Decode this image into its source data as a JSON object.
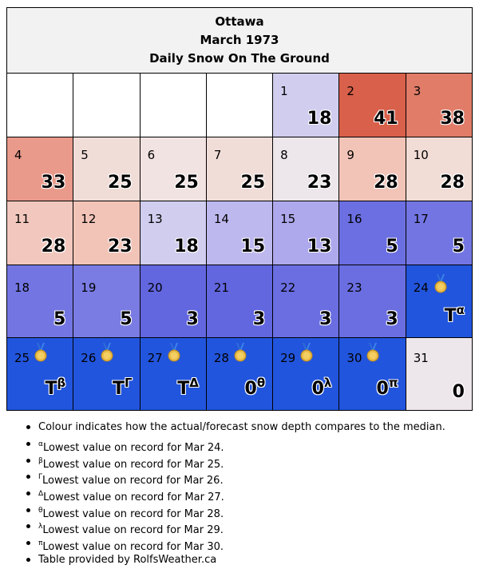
{
  "header": {
    "city": "Ottawa",
    "month": "March 1973",
    "subtitle": "Daily Snow On The Ground"
  },
  "colors": {
    "blank": "#ffffff",
    "title_bg": "#f2f2f2",
    "record_low_blue": "#2255dd"
  },
  "days": [
    {
      "day": "1",
      "value": "18",
      "color": "#d0cdee"
    },
    {
      "day": "2",
      "value": "41",
      "color": "#d9604a"
    },
    {
      "day": "3",
      "value": "38",
      "color": "#e07c68"
    },
    {
      "day": "4",
      "value": "33",
      "color": "#e99a8b"
    },
    {
      "day": "5",
      "value": "25",
      "color": "#f1ddd8"
    },
    {
      "day": "6",
      "value": "25",
      "color": "#f1e3e1"
    },
    {
      "day": "7",
      "value": "25",
      "color": "#f1ddd8"
    },
    {
      "day": "8",
      "value": "23",
      "color": "#ede6ea"
    },
    {
      "day": "9",
      "value": "28",
      "color": "#f2c4b8"
    },
    {
      "day": "10",
      "value": "28",
      "color": "#f2dcd6"
    },
    {
      "day": "11",
      "value": "28",
      "color": "#f2c8be"
    },
    {
      "day": "12",
      "value": "23",
      "color": "#f2c4b8"
    },
    {
      "day": "13",
      "value": "18",
      "color": "#d0cdee"
    },
    {
      "day": "14",
      "value": "15",
      "color": "#bdb8ee"
    },
    {
      "day": "15",
      "value": "13",
      "color": "#aea9ec"
    },
    {
      "day": "16",
      "value": "5",
      "color": "#6b6fe2"
    },
    {
      "day": "17",
      "value": "5",
      "color": "#7376e2"
    },
    {
      "day": "18",
      "value": "5",
      "color": "#7376e2"
    },
    {
      "day": "19",
      "value": "5",
      "color": "#7a7ce3"
    },
    {
      "day": "20",
      "value": "3",
      "color": "#6266df"
    },
    {
      "day": "21",
      "value": "3",
      "color": "#6266df"
    },
    {
      "day": "22",
      "value": "3",
      "color": "#6a6ee1"
    },
    {
      "day": "23",
      "value": "3",
      "color": "#6a6ee1"
    },
    {
      "day": "24",
      "value": "T",
      "mark": "α",
      "color": "#2255dd",
      "medal": true
    },
    {
      "day": "25",
      "value": "T",
      "mark": "β",
      "color": "#2255dd",
      "medal": true
    },
    {
      "day": "26",
      "value": "T",
      "mark": "Γ",
      "color": "#2255dd",
      "medal": true
    },
    {
      "day": "27",
      "value": "T",
      "mark": "Δ",
      "color": "#2255dd",
      "medal": true
    },
    {
      "day": "28",
      "value": "0",
      "mark": "θ",
      "color": "#2255dd",
      "medal": true
    },
    {
      "day": "29",
      "value": "0",
      "mark": "λ",
      "color": "#2255dd",
      "medal": true
    },
    {
      "day": "30",
      "value": "0",
      "mark": "π",
      "color": "#2255dd",
      "medal": true
    },
    {
      "day": "31",
      "value": "0",
      "color": "#ede6ea"
    }
  ],
  "notes": [
    {
      "mark": "",
      "text": "Colour indicates how the actual/forecast snow depth compares to the median."
    },
    {
      "mark": "α",
      "text": "Lowest value on record for Mar 24."
    },
    {
      "mark": "β",
      "text": "Lowest value on record for Mar 25."
    },
    {
      "mark": "Γ",
      "text": "Lowest value on record for Mar 26."
    },
    {
      "mark": "Δ",
      "text": "Lowest value on record for Mar 27."
    },
    {
      "mark": "θ",
      "text": "Lowest value on record for Mar 28."
    },
    {
      "mark": "λ",
      "text": "Lowest value on record for Mar 29."
    },
    {
      "mark": "π",
      "text": "Lowest value on record for Mar 30."
    },
    {
      "mark": "",
      "text": "Table provided by RolfsWeather.ca"
    }
  ]
}
